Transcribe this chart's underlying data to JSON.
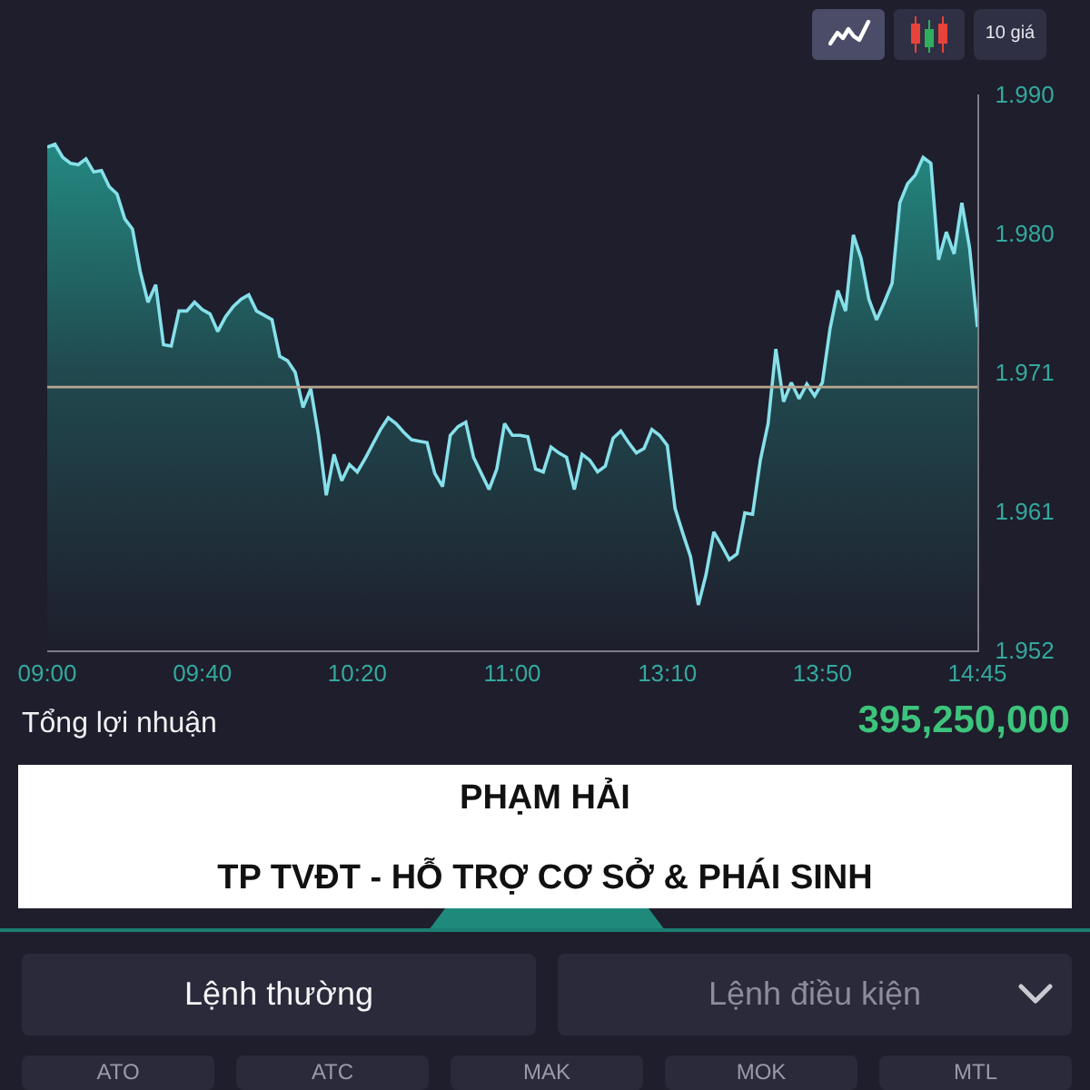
{
  "chart_data": {
    "type": "area",
    "categories": [
      "09:00",
      null,
      null,
      null,
      null,
      null,
      null,
      null,
      null,
      null,
      null,
      null,
      null,
      null,
      null,
      null,
      null,
      null,
      null,
      null,
      "09:40",
      null,
      null,
      null,
      null,
      null,
      null,
      null,
      null,
      null,
      null,
      null,
      null,
      null,
      null,
      null,
      null,
      null,
      null,
      null,
      "10:20",
      null,
      null,
      null,
      null,
      null,
      null,
      null,
      null,
      null,
      null,
      null,
      null,
      null,
      null,
      null,
      null,
      null,
      null,
      null,
      "11:00",
      null,
      null,
      null,
      null,
      null,
      null,
      null,
      null,
      null,
      null,
      null,
      null,
      null,
      null,
      null,
      null,
      null,
      null,
      null,
      "13:10",
      null,
      null,
      null,
      null,
      null,
      null,
      null,
      null,
      null,
      null,
      null,
      null,
      null,
      null,
      null,
      null,
      null,
      null,
      null,
      "13:50",
      null,
      null,
      null,
      null,
      null,
      null,
      null,
      null,
      null,
      null,
      null,
      null,
      null,
      null,
      null,
      null,
      null,
      null,
      null,
      "14:45"
    ],
    "series": [
      {
        "color": "#86e0ea",
        "values": [
          1.9864,
          1.9866,
          1.9857,
          1.9853,
          1.9852,
          1.9856,
          1.9847,
          1.9848,
          1.9837,
          1.9832,
          1.9815,
          1.9808,
          1.9779,
          1.9758,
          1.977,
          1.9729,
          1.9728,
          1.9752,
          1.9752,
          1.9758,
          1.9753,
          1.975,
          1.9738,
          1.9748,
          1.9755,
          1.976,
          1.9763,
          1.9752,
          1.9749,
          1.9746,
          1.9721,
          1.9718,
          1.971,
          1.9686,
          1.9699,
          1.9667,
          1.9626,
          1.9654,
          1.9636,
          1.9647,
          1.9642,
          1.9651,
          1.9661,
          1.9671,
          1.9679,
          1.9675,
          1.9669,
          1.9664,
          1.9663,
          1.9662,
          1.9641,
          1.9632,
          1.9667,
          1.9673,
          1.9676,
          1.9652,
          1.9641,
          1.963,
          1.9644,
          1.9675,
          1.9667,
          1.9667,
          1.9666,
          1.9644,
          1.9642,
          1.9659,
          1.9655,
          1.9652,
          1.963,
          1.9654,
          1.965,
          1.9642,
          1.9646,
          1.9665,
          1.967,
          1.9662,
          1.9655,
          1.9658,
          1.9671,
          1.9667,
          1.966,
          1.9617,
          1.96,
          1.9584,
          1.9551,
          1.9572,
          1.9601,
          1.9592,
          1.9582,
          1.9586,
          1.9614,
          1.9613,
          1.965,
          1.9675,
          1.9726,
          1.969,
          1.9703,
          1.9692,
          1.9702,
          1.9694,
          1.9703,
          1.974,
          1.9766,
          1.9752,
          1.9804,
          1.9788,
          1.976,
          1.9746,
          1.9758,
          1.9771,
          1.9826,
          1.9839,
          1.9845,
          1.9857,
          1.9853,
          1.9787,
          1.9806,
          1.9791,
          1.9826,
          1.9795,
          1.9741
        ]
      }
    ],
    "ylim": [
      1.952,
      1.99
    ],
    "yticks": [
      1.952,
      {
        "value": 1.9615,
        "label": "1.961"
      },
      1.971,
      {
        "value": 1.9805,
        "label": "1.980"
      },
      {
        "value": 1.99,
        "label": "1.990"
      }
    ],
    "ref_lines": [
      {
        "axis": "y",
        "value": 1.97,
        "color": "#b8a68f"
      }
    ],
    "annotations": [
      "Tổng lợi nhuận",
      "395,250,000",
      "PHẠM HẢI",
      "TP TVĐT - HỖ TRỢ CƠ SỞ & PHÁI SINH",
      "10 giá",
      "Lệnh thường",
      "Lệnh điều kiện",
      "ATO",
      "ATC",
      "MAK",
      "MOK",
      "MTL"
    ]
  }
}
